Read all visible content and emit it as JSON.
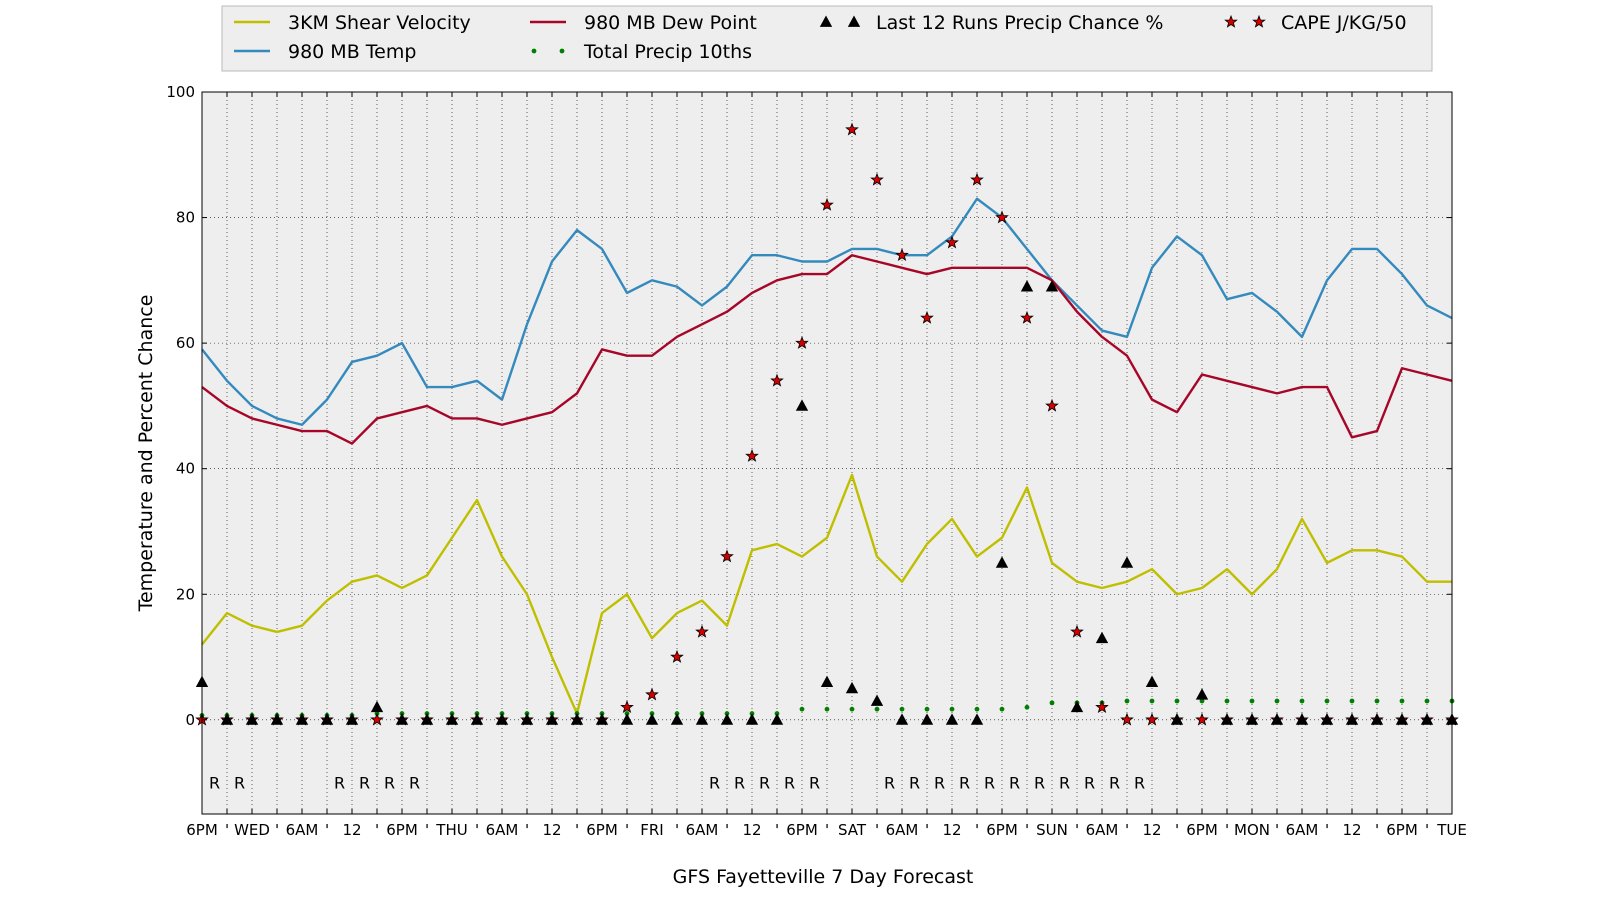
{
  "chart_data": {
    "type": "line",
    "title": "",
    "xlabel": "GFS Fayetteville 7 Day Forecast",
    "ylabel": "Temperature and Percent Chance",
    "ylim": [
      -15,
      100
    ],
    "yticks": [
      0,
      20,
      40,
      60,
      80,
      100
    ],
    "grid": true,
    "legend_position": "top",
    "x_tick_labels": [
      "6PM",
      "'",
      "WED",
      "'",
      "6AM",
      "'",
      "12",
      "'",
      "6PM",
      "'",
      "THU",
      "'",
      "6AM",
      "'",
      "12",
      "'",
      "6PM",
      "'",
      "FRI",
      "'",
      "6AM",
      "'",
      "12",
      "'",
      "6PM",
      "'",
      "SAT",
      "'",
      "6AM",
      "'",
      "12",
      "'",
      "6PM",
      "'",
      "SUN",
      "'",
      "6AM",
      "'",
      "12",
      "'",
      "6PM",
      "'",
      "MON",
      "'",
      "6AM",
      "'",
      "12",
      "'",
      "6PM",
      "'",
      "TUE"
    ],
    "series": [
      {
        "name": "3KM Shear Velocity",
        "style": "line",
        "color": "#bfbf00",
        "values": [
          12,
          17,
          15,
          14,
          15,
          19,
          22,
          23,
          21,
          23,
          29,
          35,
          26,
          20,
          10,
          1,
          17,
          20,
          13,
          17,
          19,
          15,
          27,
          28,
          26,
          29,
          39,
          26,
          22,
          28,
          32,
          26,
          29,
          37,
          25,
          22,
          21,
          22,
          24,
          20,
          21,
          24,
          20,
          24,
          32,
          25,
          27,
          27,
          26,
          22,
          22
        ]
      },
      {
        "name": "980 MB Temp",
        "style": "line",
        "color": "#348abd",
        "values": [
          59,
          54,
          50,
          48,
          47,
          51,
          57,
          58,
          60,
          53,
          53,
          54,
          51,
          63,
          73,
          78,
          75,
          68,
          70,
          69,
          66,
          69,
          74,
          74,
          73,
          73,
          75,
          75,
          74,
          74,
          77,
          83,
          80,
          75,
          70,
          66,
          62,
          61,
          72,
          77,
          74,
          67,
          68,
          65,
          61,
          70,
          75,
          75,
          71,
          66,
          64
        ]
      },
      {
        "name": "980 MB Dew Point",
        "style": "line",
        "color": "#a60628",
        "values": [
          53,
          50,
          48,
          47,
          46,
          46,
          44,
          48,
          49,
          50,
          48,
          48,
          47,
          48,
          49,
          52,
          59,
          58,
          58,
          61,
          63,
          65,
          68,
          70,
          71,
          71,
          74,
          73,
          72,
          71,
          72,
          72,
          72,
          72,
          70,
          65,
          61,
          58,
          51,
          49,
          55,
          54,
          53,
          52,
          53,
          53,
          45,
          46,
          56,
          55,
          54
        ]
      },
      {
        "name": "Total Precip 10ths",
        "style": "dot",
        "color": "#008000",
        "values": [
          0.7,
          0.7,
          0.7,
          0.7,
          0.7,
          0.7,
          0.7,
          1,
          1,
          1,
          1,
          1,
          1,
          1,
          1,
          1,
          1,
          1,
          1,
          1,
          1,
          1,
          1,
          1,
          1.7,
          1.7,
          1.7,
          1.7,
          1.7,
          1.7,
          1.7,
          1.7,
          1.7,
          2,
          2.7,
          2.7,
          2.7,
          3,
          3,
          3,
          3,
          3,
          3,
          3,
          3,
          3,
          3,
          3,
          3,
          3,
          3
        ]
      },
      {
        "name": "Last 12 Runs Precip Chance %",
        "style": "triangle",
        "color": "#000000",
        "values": [
          6,
          0,
          0,
          0,
          0,
          0,
          0,
          2,
          0,
          0,
          0,
          0,
          0,
          0,
          0,
          0,
          0,
          0,
          0,
          0,
          0,
          0,
          0,
          0,
          50,
          6,
          5,
          3,
          0,
          0,
          0,
          0,
          25,
          69,
          69,
          2,
          13,
          25,
          6,
          0,
          4,
          0,
          0,
          0,
          0,
          0,
          0,
          0,
          0,
          0,
          0
        ]
      },
      {
        "name": "CAPE J/KG/50",
        "style": "star",
        "color": "#d40000",
        "values": [
          0,
          0,
          0,
          0,
          0,
          0,
          0,
          0,
          0,
          0,
          0,
          0,
          0,
          0,
          0,
          0,
          0,
          2,
          4,
          10,
          14,
          26,
          42,
          54,
          60,
          82,
          94,
          86,
          74,
          64,
          76,
          86,
          80,
          64,
          50,
          14,
          2,
          0,
          0,
          0,
          0,
          0,
          0,
          0,
          0,
          0,
          0,
          0,
          0,
          0,
          0
        ]
      }
    ],
    "r_marker_label": "R",
    "r_marker_positions": [
      0.5,
      1.5,
      5.5,
      6.5,
      7.5,
      8.5,
      20.5,
      21.5,
      22.5,
      23.5,
      24.5,
      27.5,
      28.5,
      29.5,
      30.5,
      31.5,
      32.5,
      33.5,
      34.5,
      35.5,
      36.5,
      37.5
    ]
  },
  "legend": {
    "items": [
      {
        "label": "3KM Shear Velocity",
        "kind": "line",
        "color": "#bfbf00"
      },
      {
        "label": "980 MB Temp",
        "kind": "line",
        "color": "#348abd"
      },
      {
        "label": "980 MB Dew Point",
        "kind": "line",
        "color": "#a60628"
      },
      {
        "label": "Total Precip 10ths",
        "kind": "dot",
        "color": "#008000"
      },
      {
        "label": "Last 12 Runs Precip Chance %",
        "kind": "triangle",
        "color": "#000000"
      },
      {
        "label": "CAPE J/KG/50",
        "kind": "star",
        "color": "#d40000"
      }
    ]
  }
}
